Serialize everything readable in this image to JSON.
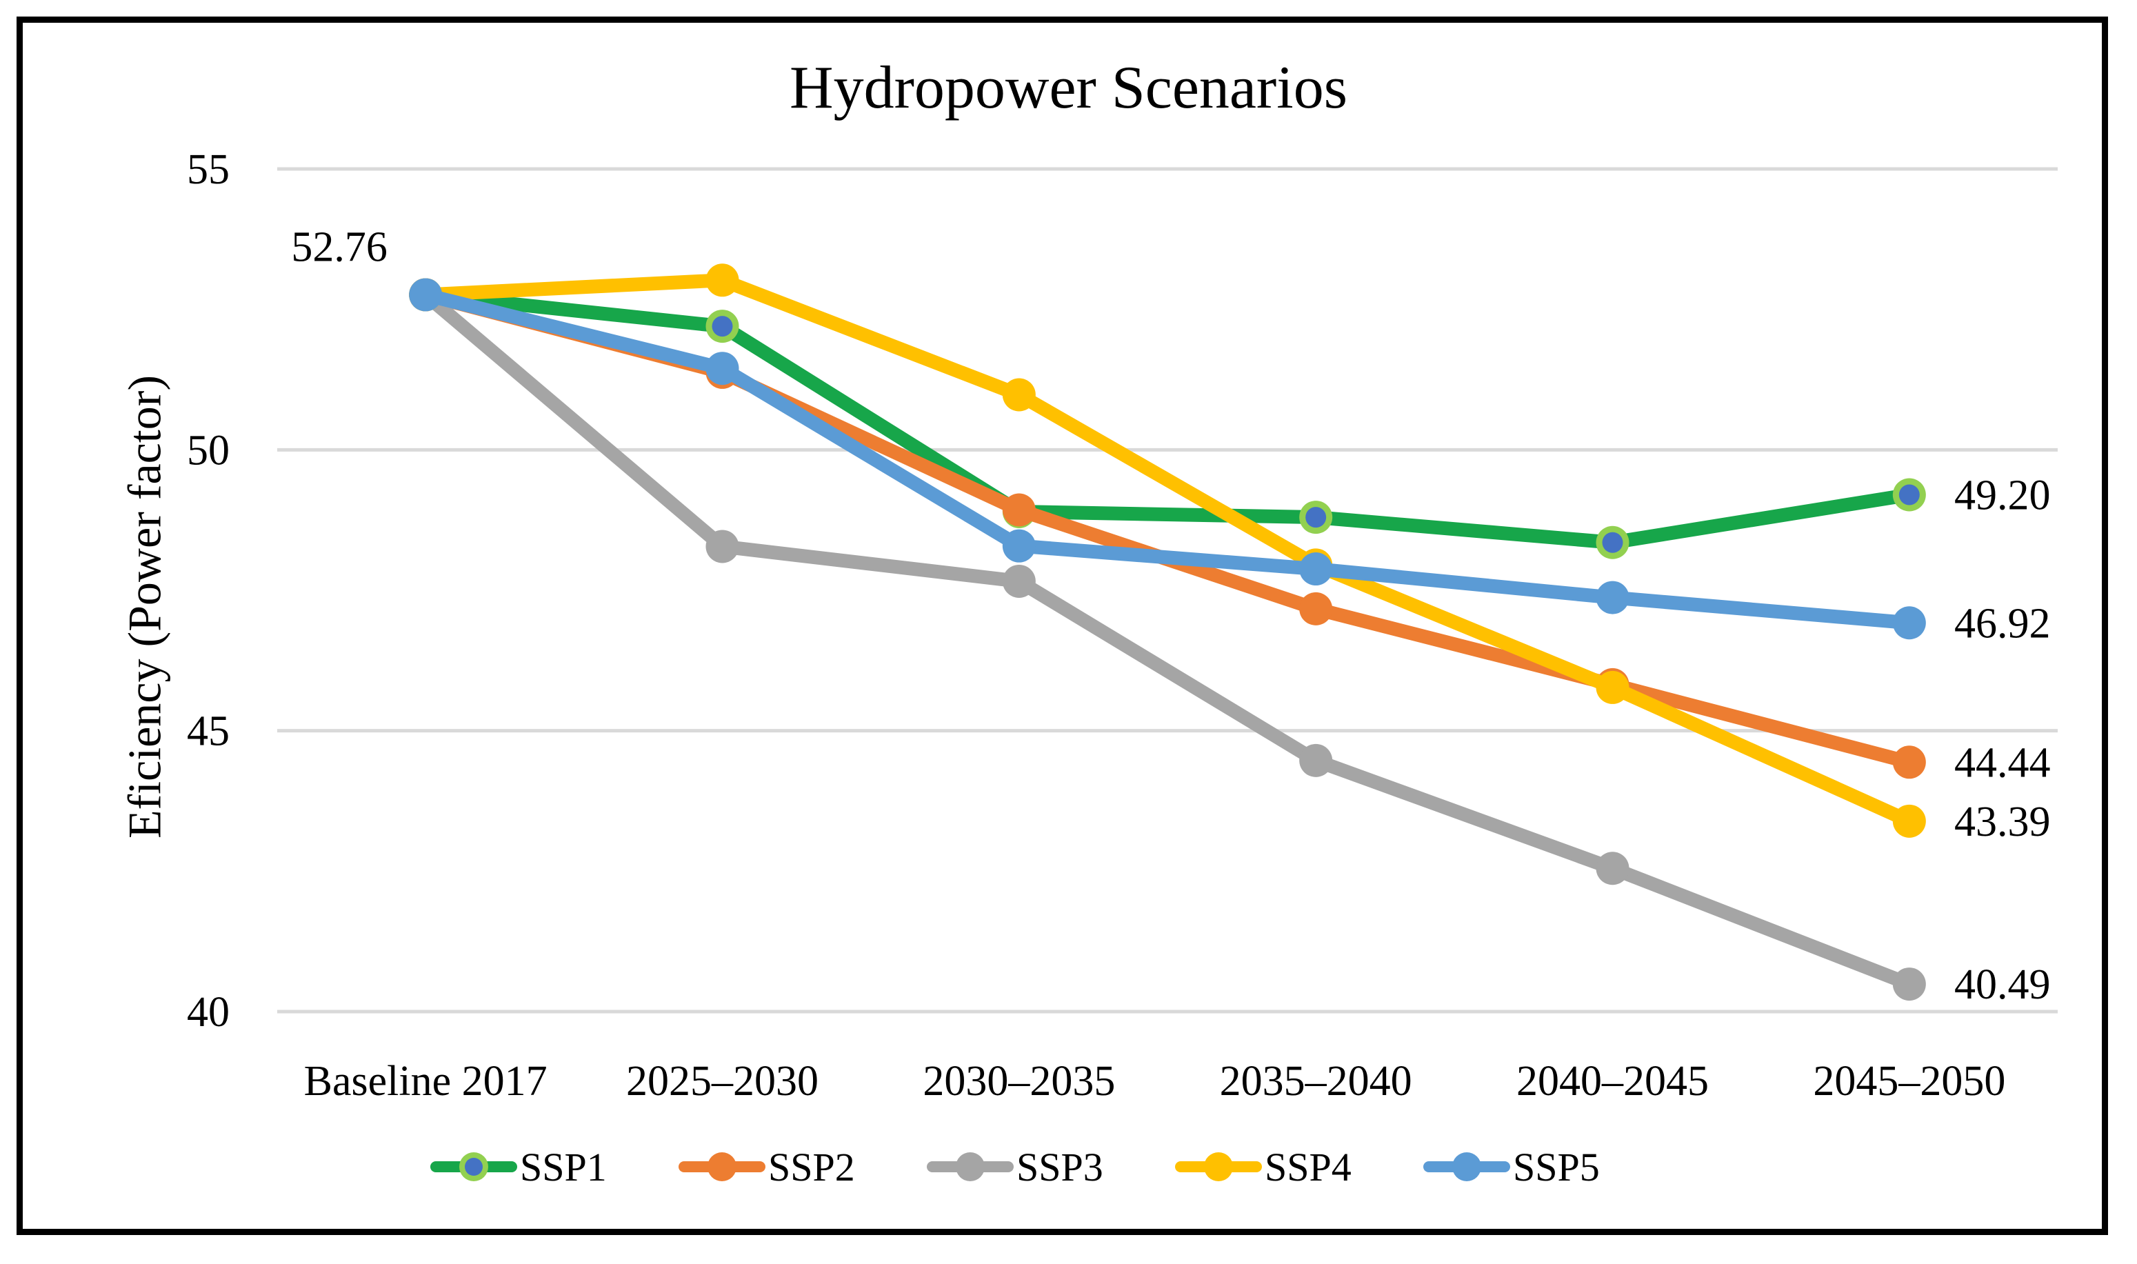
{
  "chart_data": {
    "type": "line",
    "title": "Hydropower Scenarios",
    "ylabel": "Eficiency (Power factor)",
    "xlabel": "",
    "categories": [
      "Baseline 2017",
      "2025–2030",
      "2030–2035",
      "2035–2040",
      "2040–2045",
      "2045–2050"
    ],
    "ylim": [
      40,
      55
    ],
    "yticks": [
      55,
      50,
      45,
      40
    ],
    "grid": true,
    "legend_position": "bottom",
    "start_label": "52.76",
    "series": [
      {
        "name": "SSP1",
        "color": "#17A64A",
        "marker_ring": "#92D050",
        "marker_fill": "#4472C4",
        "values": [
          52.76,
          52.2,
          48.9,
          48.8,
          48.35,
          49.2
        ],
        "end_label": "49.20"
      },
      {
        "name": "SSP2",
        "color": "#ED7D31",
        "values": [
          52.76,
          51.38,
          48.93,
          47.17,
          45.82,
          44.44
        ],
        "end_label": "44.44"
      },
      {
        "name": "SSP3",
        "color": "#A5A5A5",
        "values": [
          52.76,
          48.28,
          47.66,
          44.47,
          42.55,
          40.49
        ],
        "end_label": "40.49"
      },
      {
        "name": "SSP4",
        "color": "#FFC000",
        "values": [
          52.76,
          53.02,
          50.98,
          47.95,
          45.77,
          43.39
        ],
        "end_label": "43.39"
      },
      {
        "name": "SSP5",
        "color": "#5B9BD5",
        "values": [
          52.76,
          51.45,
          48.29,
          47.88,
          47.37,
          46.92
        ],
        "end_label": "46.92"
      }
    ],
    "colors": {
      "gridline": "#D9D9D9",
      "border": "#000000",
      "background": "#FFFFFF",
      "text": "#000000"
    }
  }
}
